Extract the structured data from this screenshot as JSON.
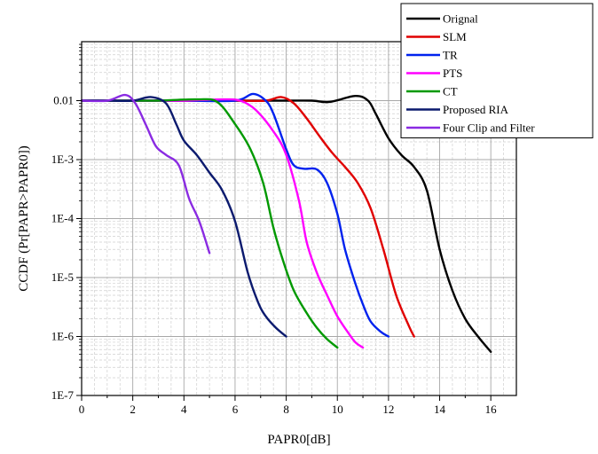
{
  "chart_data": {
    "type": "line",
    "title": "",
    "xlabel": "PAPR0[dB]",
    "ylabel": "CCDF (Pr[PAPR>PAPR0])",
    "x_scale": "linear",
    "y_scale": "log",
    "xlim": [
      0,
      17
    ],
    "ylim": [
      1e-07,
      0.1
    ],
    "x_ticks": [
      0,
      2,
      4,
      6,
      8,
      10,
      12,
      14,
      16
    ],
    "x_tick_labels": [
      "0",
      "2",
      "4",
      "6",
      "8",
      "10",
      "12",
      "14",
      "16"
    ],
    "y_ticks": [
      1e-07,
      1e-06,
      1e-05,
      0.0001,
      0.001,
      0.01
    ],
    "y_tick_labels": [
      "1E-7",
      "1E-6",
      "1E-5",
      "1E-4",
      "1E-3",
      "0.01"
    ],
    "grid": true,
    "legend_position": "top-right",
    "series": [
      {
        "name": "Orignal",
        "color": "#000000",
        "x": [
          0,
          2,
          4,
          6,
          8,
          9,
          9.7,
          10.7,
          11.2,
          11.5,
          12,
          12.5,
          13,
          13.5,
          14,
          14.5,
          15,
          15.5,
          16
        ],
        "y": [
          0.01,
          0.01,
          0.01,
          0.01,
          0.01,
          0.01,
          0.0095,
          0.012,
          0.01,
          0.006,
          0.0023,
          0.0012,
          0.00075,
          0.0003,
          3e-05,
          6e-06,
          2e-06,
          1e-06,
          5.5e-07
        ]
      },
      {
        "name": "SLM",
        "color": "#e00000",
        "x": [
          0,
          2,
          4,
          6,
          7.2,
          7.8,
          8.3,
          8.8,
          9.3,
          9.8,
          10.3,
          10.8,
          11.3,
          11.8,
          12.3,
          12.8,
          13
        ],
        "y": [
          0.01,
          0.01,
          0.01,
          0.01,
          0.01,
          0.0115,
          0.009,
          0.005,
          0.0025,
          0.0013,
          0.00075,
          0.0004,
          0.00015,
          3e-05,
          5e-06,
          1.5e-06,
          1e-06
        ]
      },
      {
        "name": "TR",
        "color": "#0022ee",
        "x": [
          0,
          2,
          4,
          6,
          6.7,
          7.2,
          7.5,
          8,
          8.3,
          8.7,
          9.2,
          9.6,
          10,
          10.3,
          10.7,
          11,
          11.3,
          11.7,
          12
        ],
        "y": [
          0.01,
          0.01,
          0.01,
          0.01,
          0.013,
          0.01,
          0.006,
          0.0015,
          0.0008,
          0.0007,
          0.00068,
          0.0004,
          0.00012,
          3e-05,
          8e-06,
          3.5e-06,
          1.8e-06,
          1.2e-06,
          1e-06
        ]
      },
      {
        "name": "PTS",
        "color": "#ff00ff",
        "x": [
          0,
          2,
          4,
          5.5,
          6.2,
          6.8,
          7.5,
          8,
          8.5,
          8.8,
          9.2,
          9.6,
          10,
          10.4,
          10.7,
          11
        ],
        "y": [
          0.01,
          0.01,
          0.01,
          0.0105,
          0.01,
          0.007,
          0.003,
          0.0012,
          0.0002,
          4e-05,
          1.2e-05,
          5e-06,
          2.2e-06,
          1.2e-06,
          8e-07,
          6.5e-07
        ]
      },
      {
        "name": "CT",
        "color": "#009900",
        "x": [
          0,
          2,
          3,
          4.5,
          5.3,
          6,
          6.6,
          7.1,
          7.5,
          7.9,
          8.3,
          8.8,
          9.2,
          9.6,
          10
        ],
        "y": [
          0.01,
          0.01,
          0.01,
          0.0105,
          0.0095,
          0.004,
          0.0015,
          0.0004,
          7e-05,
          1.8e-05,
          6e-06,
          2.5e-06,
          1.4e-06,
          9e-07,
          6.5e-07
        ]
      },
      {
        "name": "Proposed RIA",
        "color": "#0b1a6e",
        "x": [
          0,
          1,
          2,
          2.7,
          3.3,
          3.7,
          4,
          4.5,
          5,
          5.5,
          6,
          6.5,
          6.9,
          7.2,
          7.6,
          8
        ],
        "y": [
          0.01,
          0.01,
          0.01,
          0.0115,
          0.009,
          0.004,
          0.0021,
          0.0012,
          0.0006,
          0.0003,
          9e-05,
          1.2e-05,
          3.8e-06,
          2.2e-06,
          1.4e-06,
          1e-06
        ]
      },
      {
        "name": "Four Clip and Filter",
        "color": "#8a2be2",
        "x": [
          0,
          1,
          1.7,
          2.1,
          2.5,
          2.9,
          3.3,
          3.8,
          4.2,
          4.6,
          5
        ],
        "y": [
          0.01,
          0.01,
          0.0125,
          0.009,
          0.004,
          0.0017,
          0.0012,
          0.0008,
          0.00022,
          9e-05,
          2.6e-05
        ]
      }
    ]
  }
}
